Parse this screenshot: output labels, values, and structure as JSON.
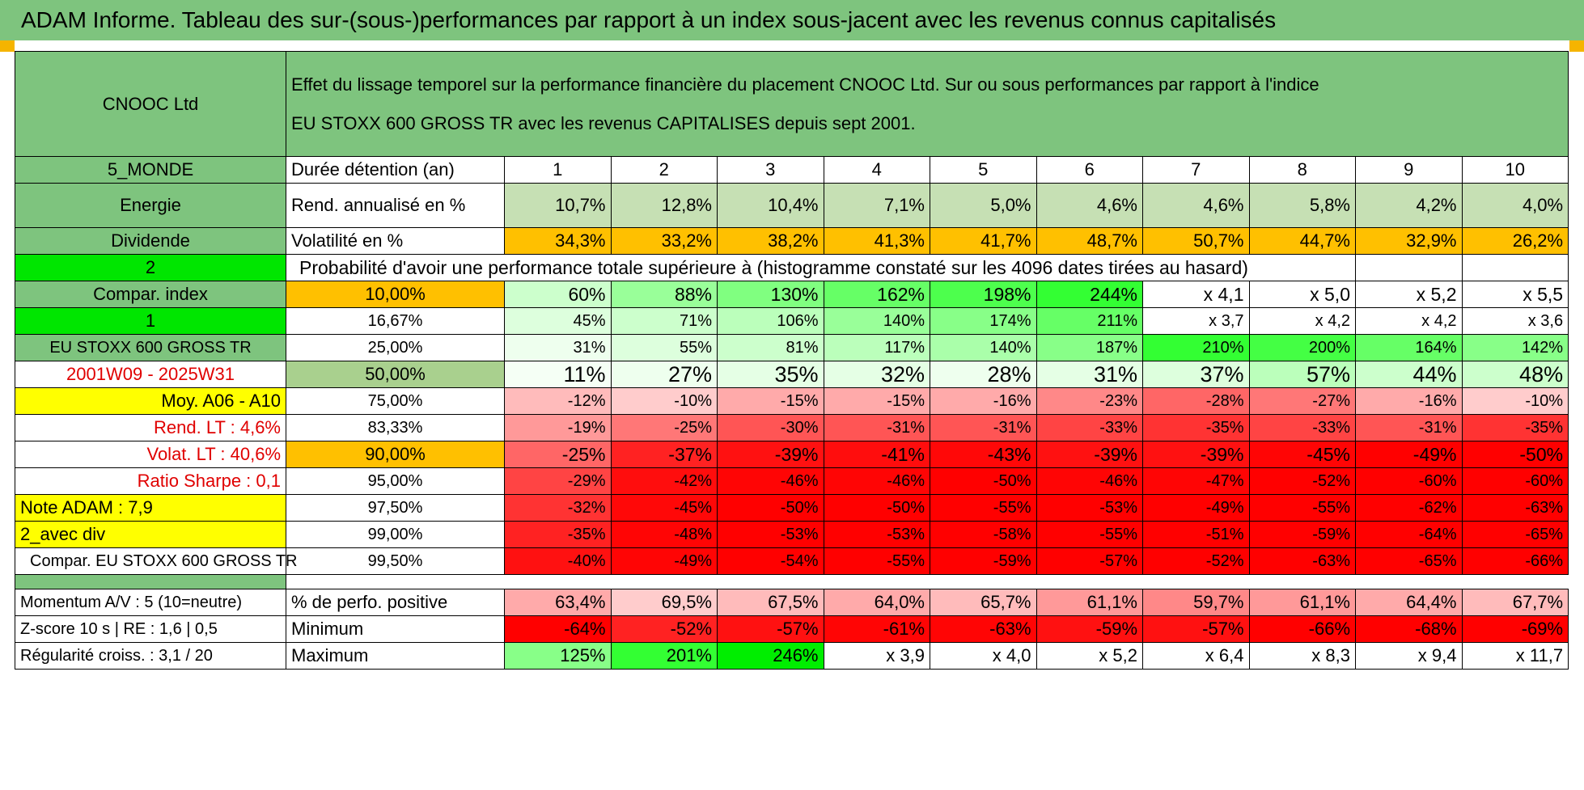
{
  "title": "ADAM Informe. Tableau des sur-(sous-)performances par rapport à un index sous-jacent avec les revenus connus capitalisés",
  "header": {
    "company": "CNOOC Ltd",
    "description_line1": "Effet du lissage temporel sur la performance financière du placement CNOOC Ltd. Sur ou sous performances par rapport à l'indice",
    "description_line2": "EU STOXX 600 GROSS TR avec les revenus CAPITALISES depuis sept 2001."
  },
  "left_labels": {
    "zone": "5_MONDE",
    "sector": "Energie",
    "type": "Dividende",
    "sel1": "2",
    "compar_index": "Compar. index",
    "sel2": "1",
    "index_name": "EU STOXX 600 GROSS TR",
    "period": "2001W09 - 2025W31",
    "moy": "Moy. A06 - A10",
    "rend_lt": "Rend. LT :    4,6%",
    "volat_lt": "Volat. LT :    40,6%",
    "sharpe": "Ratio Sharpe :    0,1",
    "note": "Note ADAM : 7,9",
    "avec_div": "2_avec div",
    "compar_full": "Compar. EU STOXX 600 GROSS TR"
  },
  "rows_labels": {
    "duree": "Durée détention (an)",
    "rend": "Rend. annualisé en %",
    "volat": "Volatilité en %",
    "proba": "Probabilité d'avoir une performance totale supérieure à (histogramme constaté sur les 4096 dates tirées au hasard)"
  },
  "years": [
    "1",
    "2",
    "3",
    "4",
    "5",
    "6",
    "7",
    "8",
    "9",
    "10"
  ],
  "rend": [
    "10,7%",
    "12,8%",
    "10,4%",
    "7,1%",
    "5,0%",
    "4,6%",
    "4,6%",
    "5,8%",
    "4,2%",
    "4,0%"
  ],
  "volat": [
    "34,3%",
    "33,2%",
    "38,2%",
    "41,3%",
    "41,7%",
    "48,7%",
    "50,7%",
    "44,7%",
    "32,9%",
    "26,2%"
  ],
  "quantiles": [
    {
      "p": "10,00%",
      "v": [
        "60%",
        "88%",
        "130%",
        "162%",
        "198%",
        "244%",
        "x 4,1",
        "x 5,0",
        "x 5,2",
        "x 5,5"
      ]
    },
    {
      "p": "16,67%",
      "v": [
        "45%",
        "71%",
        "106%",
        "140%",
        "174%",
        "211%",
        "x 3,7",
        "x 4,2",
        "x 4,2",
        "x 3,6"
      ]
    },
    {
      "p": "25,00%",
      "v": [
        "31%",
        "55%",
        "81%",
        "117%",
        "140%",
        "187%",
        "210%",
        "200%",
        "164%",
        "142%"
      ]
    },
    {
      "p": "50,00%",
      "v": [
        "11%",
        "27%",
        "35%",
        "32%",
        "28%",
        "31%",
        "37%",
        "57%",
        "44%",
        "48%"
      ]
    },
    {
      "p": "75,00%",
      "v": [
        "-12%",
        "-10%",
        "-15%",
        "-15%",
        "-16%",
        "-23%",
        "-28%",
        "-27%",
        "-16%",
        "-10%"
      ]
    },
    {
      "p": "83,33%",
      "v": [
        "-19%",
        "-25%",
        "-30%",
        "-31%",
        "-31%",
        "-33%",
        "-35%",
        "-33%",
        "-31%",
        "-35%"
      ]
    },
    {
      "p": "90,00%",
      "v": [
        "-25%",
        "-37%",
        "-39%",
        "-41%",
        "-43%",
        "-39%",
        "-39%",
        "-45%",
        "-49%",
        "-50%"
      ]
    },
    {
      "p": "95,00%",
      "v": [
        "-29%",
        "-42%",
        "-46%",
        "-46%",
        "-50%",
        "-46%",
        "-47%",
        "-52%",
        "-60%",
        "-60%"
      ]
    },
    {
      "p": "97,50%",
      "v": [
        "-32%",
        "-45%",
        "-50%",
        "-50%",
        "-55%",
        "-53%",
        "-49%",
        "-55%",
        "-62%",
        "-63%"
      ]
    },
    {
      "p": "99,00%",
      "v": [
        "-35%",
        "-48%",
        "-53%",
        "-53%",
        "-58%",
        "-55%",
        "-51%",
        "-59%",
        "-64%",
        "-65%"
      ]
    },
    {
      "p": "99,50%",
      "v": [
        "-40%",
        "-49%",
        "-54%",
        "-55%",
        "-59%",
        "-57%",
        "-52%",
        "-63%",
        "-65%",
        "-66%"
      ]
    }
  ],
  "bottom": [
    {
      "left": "Momentum A/V : 5 (10=neutre)",
      "label": "% de perfo. positive",
      "v": [
        "63,4%",
        "69,5%",
        "67,5%",
        "64,0%",
        "65,7%",
        "61,1%",
        "59,7%",
        "61,1%",
        "64,4%",
        "67,7%"
      ]
    },
    {
      "left": "Z-score 10 s | RE : 1,6 | 0,5",
      "label": "Minimum",
      "v": [
        "-64%",
        "-52%",
        "-57%",
        "-61%",
        "-63%",
        "-59%",
        "-57%",
        "-66%",
        "-68%",
        "-69%"
      ]
    },
    {
      "left": "Régularité croiss. : 3,1 / 20",
      "label": "Maximum",
      "v": [
        "125%",
        "201%",
        "246%",
        "x 3,9",
        "x 4,0",
        "x 5,2",
        "x 6,4",
        "x 8,3",
        "x 9,4",
        "x 11,7"
      ]
    }
  ],
  "colors": {
    "header_green": "#7ec47e",
    "bright_green": "#00e600",
    "yellow": "#ffff00",
    "orange": "#ffc000",
    "red_text": "#e00000"
  }
}
